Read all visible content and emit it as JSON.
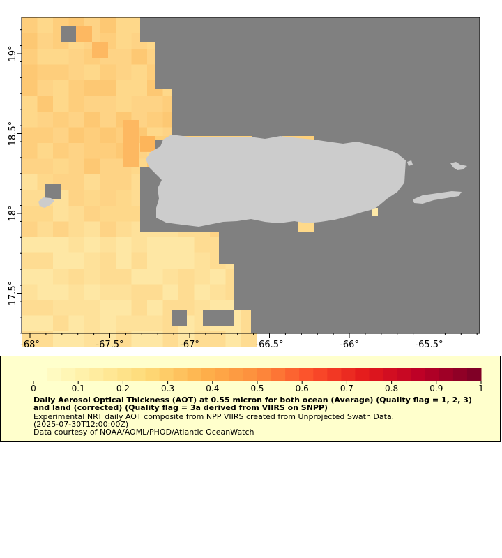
{
  "map": {
    "x_ticks": [
      {
        "lon": -68,
        "label": "-68°"
      },
      {
        "lon": -67.5,
        "label": "-67.5°"
      },
      {
        "lon": -67,
        "label": "-67°"
      },
      {
        "lon": -66.5,
        "label": "-66.5°"
      },
      {
        "lon": -66,
        "label": "-66°"
      },
      {
        "lon": -65.5,
        "label": "-65.5°"
      }
    ],
    "y_ticks": [
      {
        "lat": 19,
        "label": "19°"
      },
      {
        "lat": 18.5,
        "label": "18.5°"
      },
      {
        "lat": 18,
        "label": "18°"
      },
      {
        "lat": 17.5,
        "label": "17.5°"
      }
    ],
    "colors": {
      "no_data": "#808080",
      "land": "#cccccc",
      "frame": "#000000"
    }
  },
  "colorbar": {
    "ticks": [
      "0",
      "0.1",
      "0.2",
      "0.3",
      "0.4",
      "0.5",
      "0.6",
      "0.7",
      "0.8",
      "0.9",
      "1"
    ],
    "colors": [
      "#ffffcc",
      "#ffeda0",
      "#fed976",
      "#feb24c",
      "#fd8d3c",
      "#fc4e2a",
      "#e31a1c",
      "#bd0026",
      "#800026"
    ]
  },
  "legend": {
    "title": "Daily Aerosol Optical Thickness (AOT) at 0.55 micron for both ocean (Average) (Quality flag = 1, 2, 3) and land (corrected) (Quality flag = 3a derived from VIIRS on SNPP)",
    "line1": "Experimental NRT daily AOT composite from NPP VIIRS created from Unprojected Swath Data.",
    "line2": "(2025-07-30T12:00:00Z)",
    "line3": "Data courtesy of NOAA/AOML/PHOD/Atlantic OceanWatch"
  }
}
